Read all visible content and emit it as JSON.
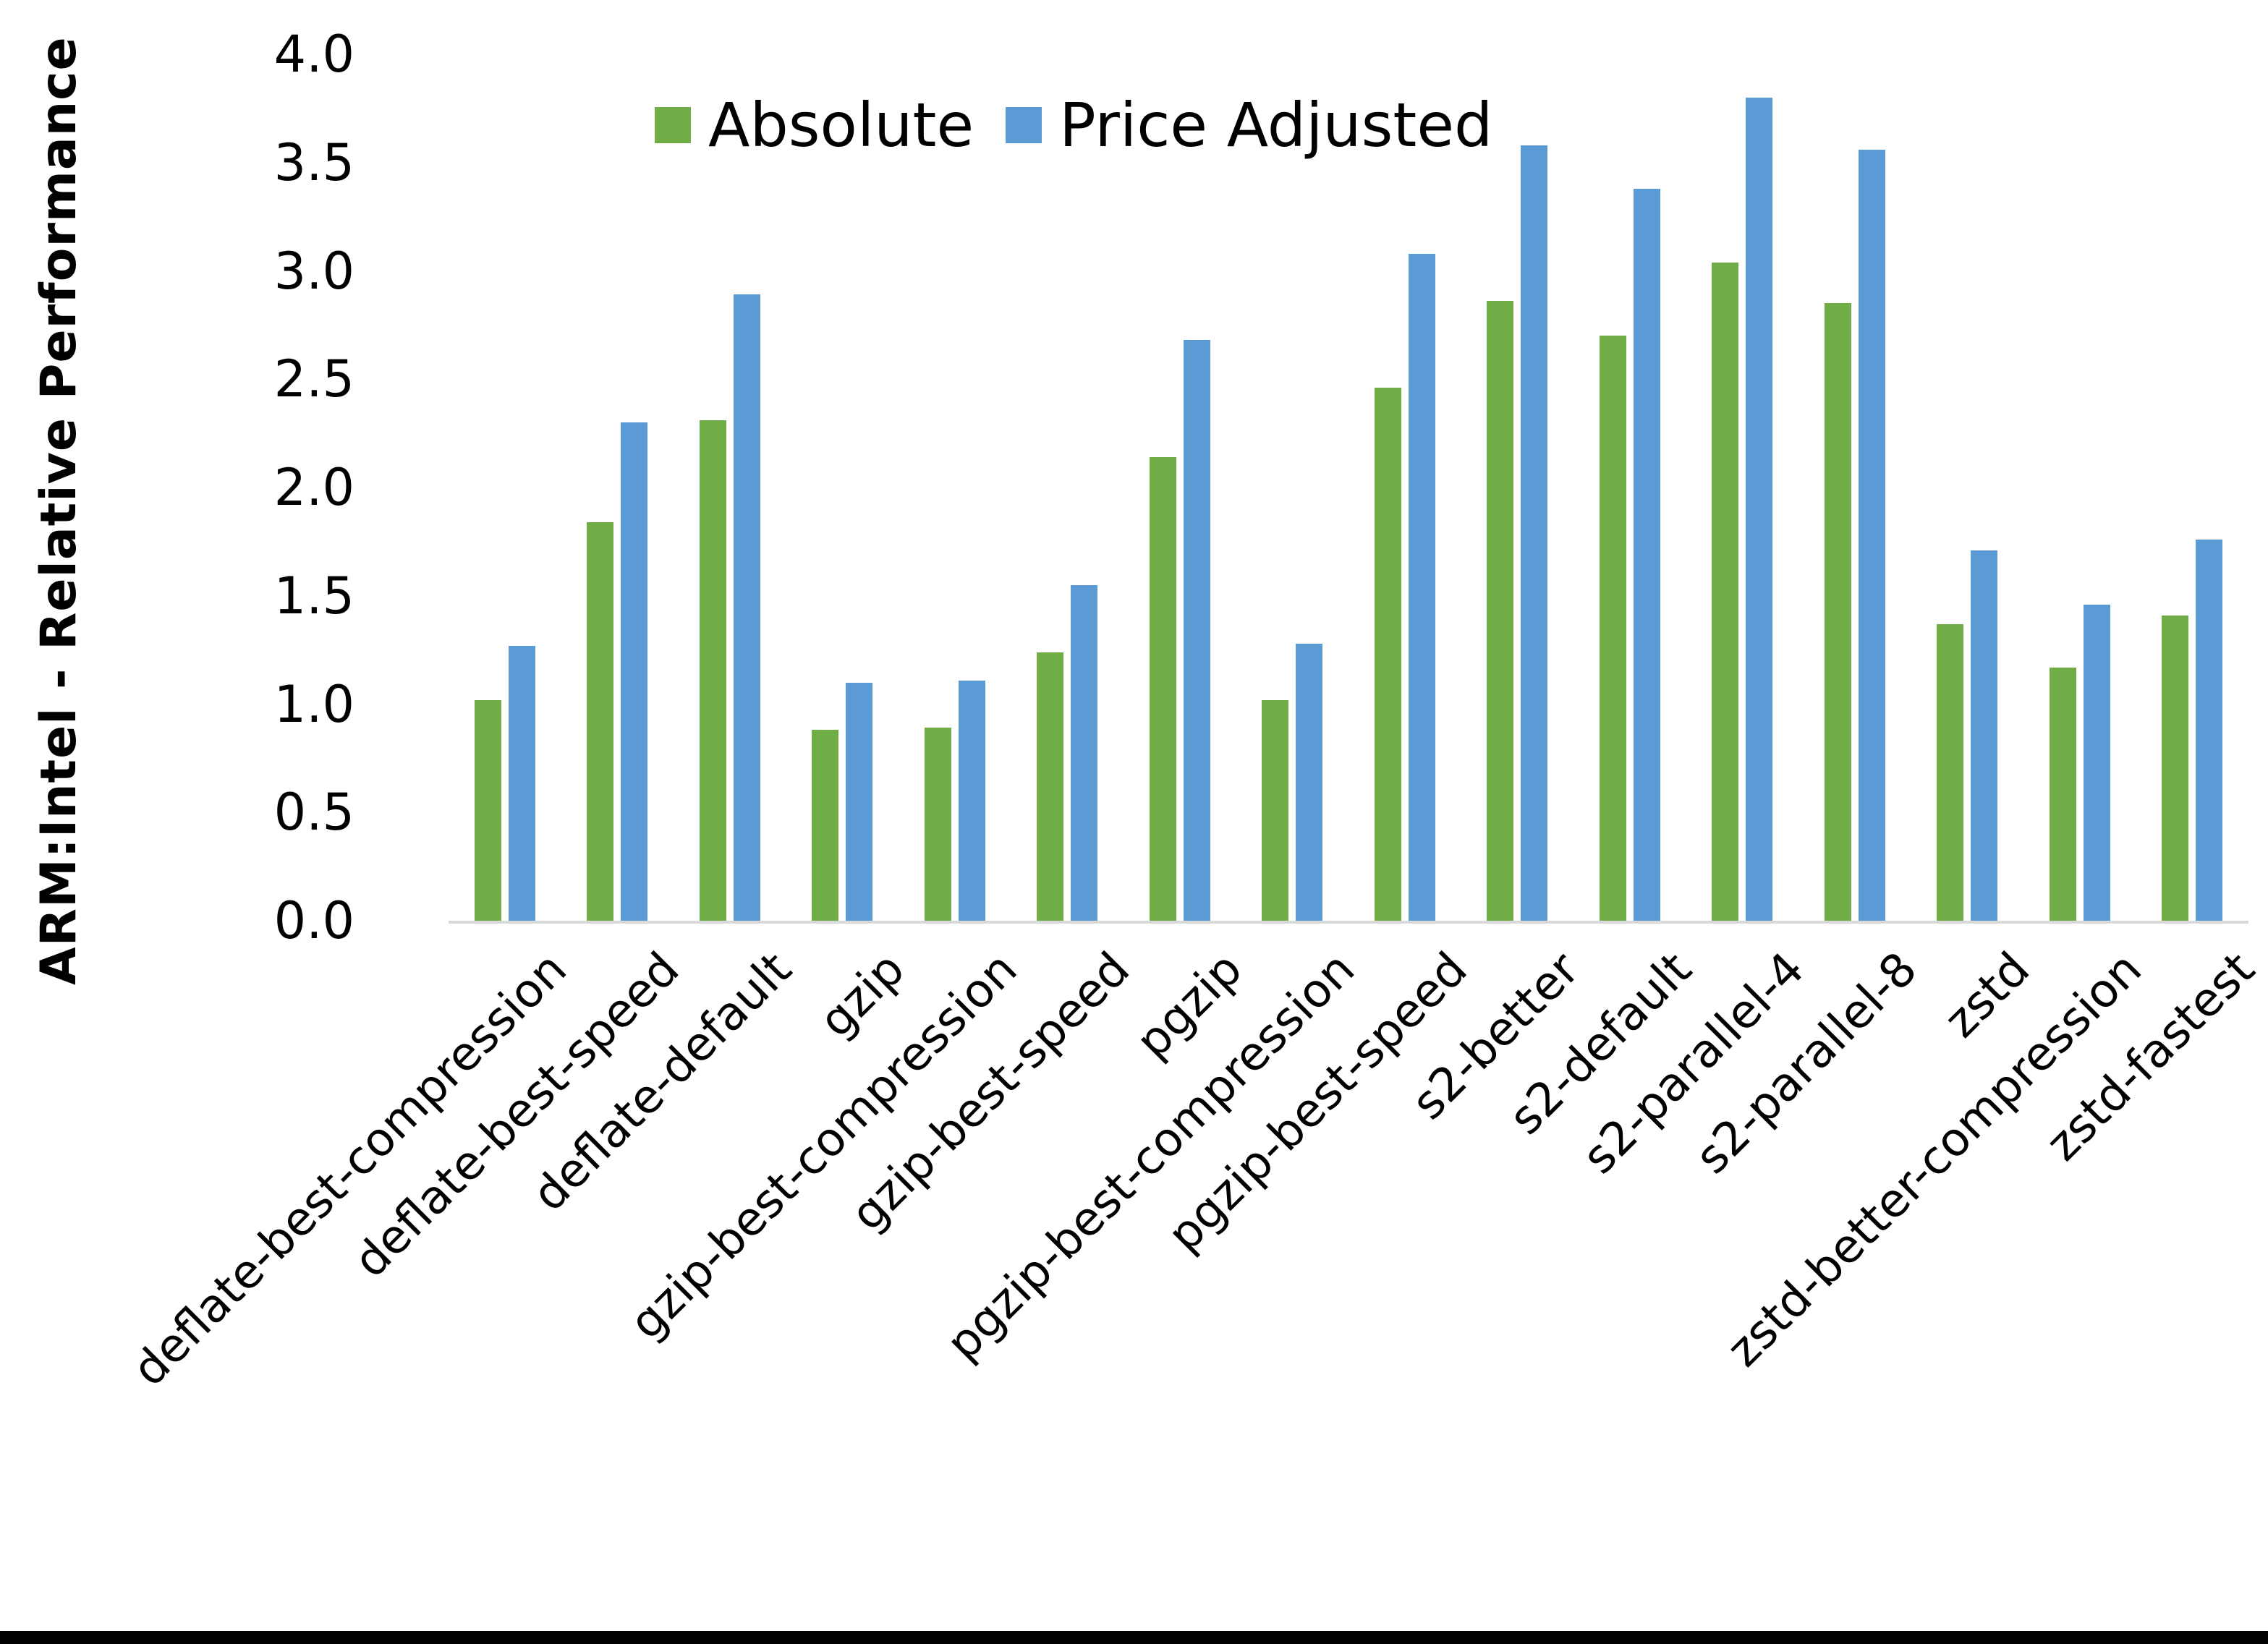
{
  "figure": {
    "background": "#FFFFFF",
    "bottom_border_color": "#000000"
  },
  "chart_data": {
    "type": "bar",
    "title": "",
    "xlabel": "",
    "ylabel": "ARM:Intel - Relative Performance",
    "ylim": [
      0,
      4.0
    ],
    "ytick_step": 0.5,
    "yticks": [
      "0.0",
      "0.5",
      "1.0",
      "1.5",
      "2.0",
      "2.5",
      "3.0",
      "3.5",
      "4.0"
    ],
    "grid": false,
    "legend_position": "top-center",
    "axis_line_color": "#D9D9D9",
    "text_color": "#000000",
    "categories": [
      "deflate-best-compression",
      "deflate-best-speed",
      "deflate-default",
      "gzip",
      "gzip-best-compression",
      "gzip-best-speed",
      "pgzip",
      "pgzip-best-compression",
      "pgzip-best-speed",
      "s2-better",
      "s2-default",
      "s2-parallel-4",
      "s2-parallel-8",
      "zstd",
      "zstd-better-compression",
      "zstd-fastest"
    ],
    "series": [
      {
        "name": "Absolute",
        "color": "#70AD47",
        "values": [
          1.02,
          1.84,
          2.31,
          0.88,
          0.89,
          1.24,
          2.14,
          1.02,
          2.46,
          2.86,
          2.7,
          3.04,
          2.85,
          1.37,
          1.17,
          1.41
        ]
      },
      {
        "name": "Price Adjusted",
        "color": "#5B9BD5",
        "values": [
          1.27,
          2.3,
          2.89,
          1.1,
          1.11,
          1.55,
          2.68,
          1.28,
          3.08,
          3.58,
          3.38,
          3.8,
          3.56,
          1.71,
          1.46,
          1.76
        ]
      }
    ]
  }
}
